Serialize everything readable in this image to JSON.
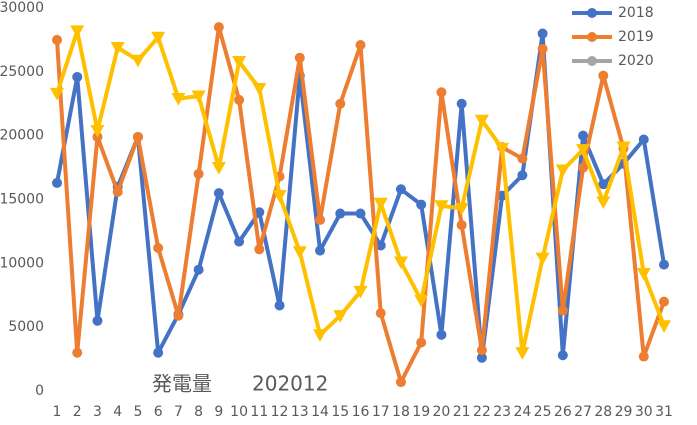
{
  "chart_data": {
    "type": "line",
    "title": "発電量　　202012",
    "categories": [
      "1",
      "2",
      "3",
      "4",
      "5",
      "6",
      "7",
      "8",
      "9",
      "10",
      "11",
      "12",
      "13",
      "14",
      "15",
      "16",
      "17",
      "18",
      "19",
      "20",
      "21",
      "22",
      "23",
      "24",
      "25",
      "26",
      "27",
      "28",
      "29",
      "30",
      "31"
    ],
    "ylim": [
      0,
      30000
    ],
    "yticks": [
      0,
      5000,
      10000,
      15000,
      20000,
      25000,
      30000
    ],
    "grid": false,
    "legend": "top-right",
    "series": [
      {
        "name": "2018",
        "color": "#4472c4",
        "marker": "circle",
        "values": [
          16300,
          24600,
          5500,
          16000,
          19900,
          3000,
          6000,
          9500,
          15500,
          11700,
          14000,
          6700,
          24700,
          11000,
          13900,
          13900,
          11400,
          15800,
          14600,
          4400,
          22500,
          2600,
          15300,
          16900,
          28000,
          2800,
          20000,
          16200,
          17800,
          19700,
          9900
        ]
      },
      {
        "name": "2019",
        "color": "#ed7d31",
        "marker": "circle",
        "values": [
          27500,
          3000,
          19900,
          15600,
          19900,
          11200,
          5900,
          17000,
          28500,
          22800,
          11100,
          16800,
          26100,
          13400,
          22500,
          27100,
          6100,
          700,
          3800,
          23400,
          13000,
          3200,
          19100,
          18200,
          26800,
          6300,
          17500,
          24700,
          19000,
          2700,
          7000
        ]
      },
      {
        "name": "2020",
        "color": "#a5a5a5",
        "marker": "circle",
        "values": [
          null,
          null,
          null,
          null,
          null,
          null,
          null,
          null,
          null,
          null,
          null,
          null,
          null,
          null,
          null,
          null,
          null,
          null,
          null,
          null,
          null,
          null,
          null,
          null,
          null,
          null,
          null,
          null,
          null,
          null,
          null
        ]
      },
      {
        "color": "#ffc000",
        "marker": "triangle-down",
        "values": [
          23300,
          28200,
          20400,
          26900,
          25900,
          27700,
          22900,
          23100,
          17500,
          25800,
          23700,
          15300,
          10900,
          4400,
          5900,
          7800,
          14700,
          10100,
          7100,
          14500,
          14300,
          21200,
          19000,
          3000,
          10400,
          17300,
          18900,
          14800,
          19100,
          9200,
          5100
        ]
      }
    ]
  }
}
